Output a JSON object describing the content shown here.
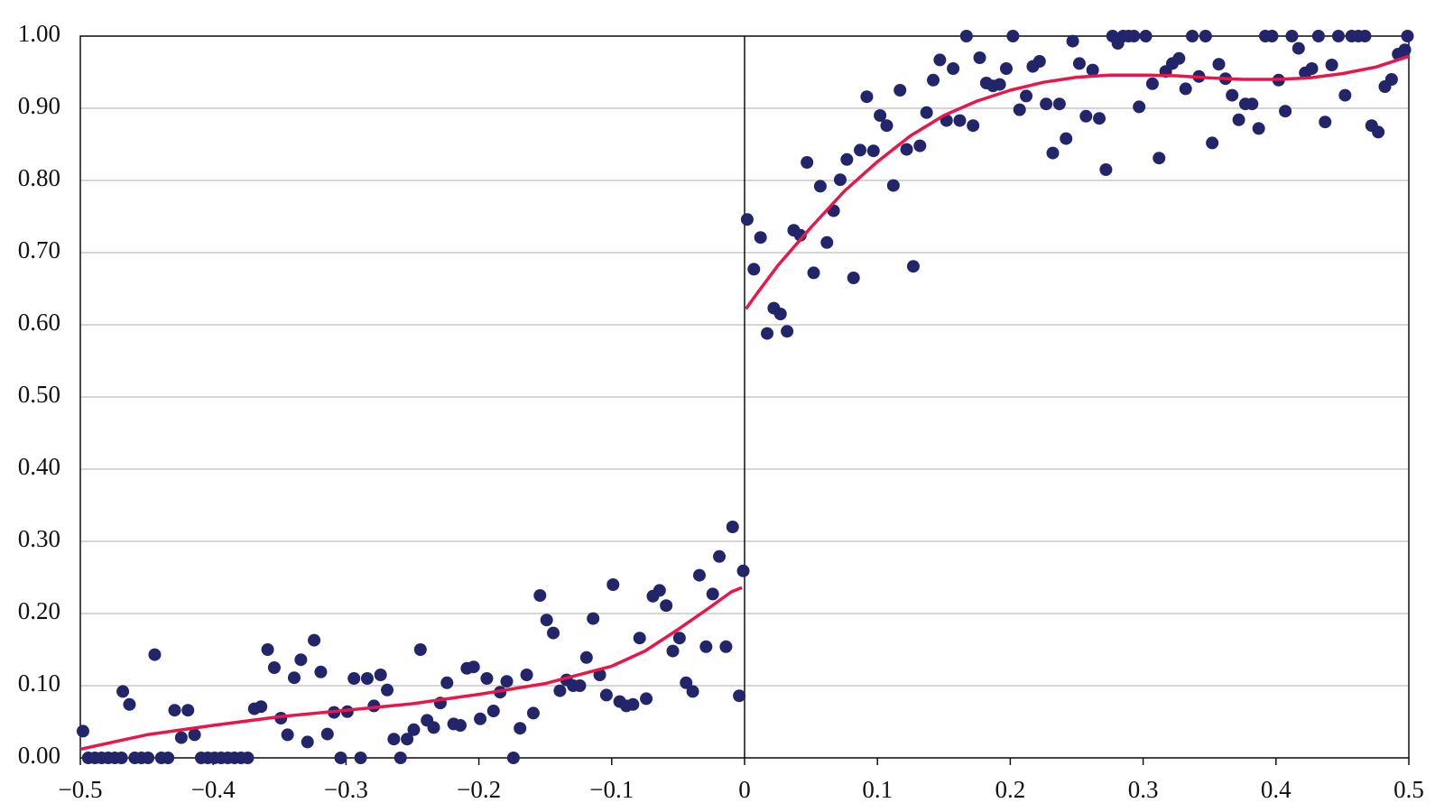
{
  "chart_data": {
    "type": "scatter",
    "xlim": [
      -0.5,
      0.5
    ],
    "xticks": [
      {
        "value": -0.5,
        "label": "−0.5"
      },
      {
        "value": -0.4,
        "label": "−0.4"
      },
      {
        "value": -0.3,
        "label": "−0.3"
      },
      {
        "value": -0.2,
        "label": "−0.2"
      },
      {
        "value": -0.1,
        "label": "−0.1"
      },
      0,
      0.1,
      0.2,
      0.3,
      0.4,
      0.5
    ],
    "ylim": [
      0,
      1
    ],
    "yticks": [
      {
        "value": 0,
        "label": "0.00"
      },
      {
        "value": 0.1,
        "label": "0.10"
      },
      {
        "value": 0.2,
        "label": "0.20"
      },
      {
        "value": 0.3,
        "label": "0.30"
      },
      {
        "value": 0.4,
        "label": "0.40"
      },
      {
        "value": 0.5,
        "label": "0.50"
      },
      {
        "value": 0.6,
        "label": "0.60"
      },
      {
        "value": 0.7,
        "label": "0.70"
      },
      {
        "value": 0.8,
        "label": "0.80"
      },
      {
        "value": 0.9,
        "label": "0.90"
      },
      {
        "value": 1,
        "label": "1.00"
      }
    ],
    "grid": true,
    "series": [
      {
        "type": "scatter",
        "color": "#23256b",
        "x": [
          -0.498,
          -0.494,
          -0.489,
          -0.484,
          -0.479,
          -0.474,
          -0.469,
          -0.468,
          -0.463,
          -0.459,
          -0.454,
          -0.449,
          -0.444,
          -0.439,
          -0.434,
          -0.429,
          -0.424,
          -0.419,
          -0.414,
          -0.409,
          -0.404,
          -0.399,
          -0.394,
          -0.389,
          -0.384,
          -0.379,
          -0.374,
          -0.369,
          -0.364,
          -0.359,
          -0.354,
          -0.349,
          -0.344,
          -0.339,
          -0.334,
          -0.329,
          -0.324,
          -0.319,
          -0.314,
          -0.309,
          -0.304,
          -0.299,
          -0.294,
          -0.289,
          -0.284,
          -0.279,
          -0.274,
          -0.269,
          -0.264,
          -0.259,
          -0.254,
          -0.249,
          -0.244,
          -0.239,
          -0.234,
          -0.229,
          -0.224,
          -0.219,
          -0.214,
          -0.209,
          -0.204,
          -0.199,
          -0.194,
          -0.189,
          -0.184,
          -0.179,
          -0.174,
          -0.169,
          -0.164,
          -0.159,
          -0.154,
          -0.149,
          -0.144,
          -0.139,
          -0.134,
          -0.129,
          -0.124,
          -0.119,
          -0.114,
          -0.109,
          -0.104,
          -0.099,
          -0.094,
          -0.089,
          -0.084,
          -0.079,
          -0.074,
          -0.069,
          -0.064,
          -0.059,
          -0.054,
          -0.049,
          -0.044,
          -0.039,
          -0.034,
          -0.029,
          -0.024,
          -0.019,
          -0.014,
          -0.009,
          -0.004,
          -0.001,
          0.002,
          0.007,
          0.012,
          0.017,
          0.022,
          0.027,
          0.032,
          0.037,
          0.042,
          0.047,
          0.052,
          0.057,
          0.062,
          0.067,
          0.072,
          0.077,
          0.082,
          0.087,
          0.092,
          0.097,
          0.102,
          0.107,
          0.112,
          0.117,
          0.122,
          0.127,
          0.132,
          0.137,
          0.142,
          0.147,
          0.152,
          0.157,
          0.162,
          0.167,
          0.172,
          0.177,
          0.182,
          0.187,
          0.192,
          0.197,
          0.202,
          0.207,
          0.212,
          0.217,
          0.222,
          0.227,
          0.232,
          0.237,
          0.242,
          0.247,
          0.252,
          0.257,
          0.262,
          0.267,
          0.272,
          0.277,
          0.281,
          0.285,
          0.289,
          0.293,
          0.297,
          0.302,
          0.307,
          0.312,
          0.317,
          0.322,
          0.327,
          0.332,
          0.337,
          0.342,
          0.347,
          0.352,
          0.357,
          0.362,
          0.367,
          0.372,
          0.377,
          0.382,
          0.387,
          0.392,
          0.397,
          0.402,
          0.407,
          0.412,
          0.417,
          0.422,
          0.427,
          0.432,
          0.437,
          0.442,
          0.447,
          0.452,
          0.457,
          0.462,
          0.467,
          0.472,
          0.477,
          0.482,
          0.487,
          0.492,
          0.497,
          0.499
        ],
        "values": [
          0.037,
          0,
          0,
          0,
          0,
          0,
          0,
          0.092,
          0.074,
          0,
          0,
          0,
          0.143,
          0,
          0,
          0.066,
          0.028,
          0.066,
          0.032,
          0,
          0,
          0,
          0,
          0,
          0,
          0,
          0,
          0.068,
          0.071,
          0.15,
          0.125,
          0.055,
          0.032,
          0.111,
          0.136,
          0.022,
          0.163,
          0.119,
          0.033,
          0.063,
          0,
          0.064,
          0.11,
          0,
          0.11,
          0.072,
          0.115,
          0.094,
          0.026,
          0,
          0.026,
          0.039,
          0.15,
          0.052,
          0.042,
          0.076,
          0.104,
          0.047,
          0.045,
          0.124,
          0.126,
          0.054,
          0.11,
          0.065,
          0.091,
          0.106,
          0,
          0.041,
          0.115,
          0.062,
          0.225,
          0.191,
          0.173,
          0.093,
          0.108,
          0.1,
          0.1,
          0.139,
          0.193,
          0.115,
          0.087,
          0.24,
          0.078,
          0.072,
          0.074,
          0.166,
          0.082,
          0.224,
          0.232,
          0.211,
          0.148,
          0.166,
          0.104,
          0.092,
          0.253,
          0.154,
          0.227,
          0.279,
          0.154,
          0.32,
          0.086,
          0.259,
          0.746,
          0.677,
          0.721,
          0.588,
          0.623,
          0.615,
          0.591,
          0.731,
          0.724,
          0.825,
          0.672,
          0.792,
          0.714,
          0.758,
          0.801,
          0.829,
          0.665,
          0.842,
          0.916,
          0.841,
          0.89,
          0.876,
          0.793,
          0.925,
          0.843,
          0.681,
          0.848,
          0.894,
          0.939,
          0.967,
          0.883,
          0.955,
          0.883,
          1,
          0.876,
          0.97,
          0.935,
          0.931,
          0.933,
          0.955,
          1,
          0.898,
          0.917,
          0.958,
          0.965,
          0.906,
          0.838,
          0.906,
          0.858,
          0.993,
          0.962,
          0.889,
          0.953,
          0.886,
          0.815,
          1,
          0.99,
          1,
          1,
          1,
          0.902,
          1,
          0.934,
          0.831,
          0.951,
          0.962,
          0.969,
          0.927,
          1,
          0.944,
          1,
          0.852,
          0.961,
          0.941,
          0.918,
          0.884,
          0.906,
          0.906,
          0.872,
          1,
          1,
          0.939,
          0.896,
          1,
          0.983,
          0.949,
          0.955,
          1,
          0.881,
          0.96,
          1,
          0.918,
          1,
          1,
          1,
          0.876,
          0.867,
          0.93,
          0.94,
          0.975,
          0.981,
          1
        ]
      },
      {
        "type": "line",
        "color": "#e8174a",
        "x": [
          -0.5,
          -0.45,
          -0.4,
          -0.35,
          -0.3,
          -0.25,
          -0.2,
          -0.15,
          -0.1,
          -0.075,
          -0.05,
          -0.025,
          -0.01,
          -0.002
        ],
        "values": [
          0.012,
          0.032,
          0.045,
          0.057,
          0.066,
          0.075,
          0.088,
          0.103,
          0.127,
          0.148,
          0.178,
          0.21,
          0.23,
          0.236
        ]
      },
      {
        "type": "line",
        "color": "#e8174a",
        "x": [
          0.001,
          0.01,
          0.025,
          0.05,
          0.075,
          0.1,
          0.125,
          0.15,
          0.175,
          0.2,
          0.225,
          0.25,
          0.275,
          0.3,
          0.325,
          0.35,
          0.375,
          0.4,
          0.425,
          0.45,
          0.475,
          0.5
        ],
        "values": [
          0.622,
          0.645,
          0.682,
          0.735,
          0.785,
          0.826,
          0.862,
          0.89,
          0.91,
          0.925,
          0.936,
          0.943,
          0.946,
          0.946,
          0.945,
          0.942,
          0.94,
          0.94,
          0.942,
          0.948,
          0.957,
          0.972
        ]
      }
    ]
  }
}
